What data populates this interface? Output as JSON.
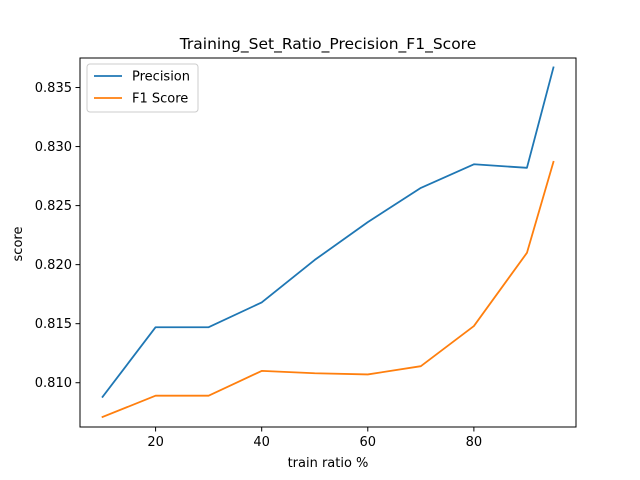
{
  "chart_data": {
    "type": "line",
    "title": "Training_Set_Ratio_Precision_F1_Score",
    "xlabel": "train ratio %",
    "ylabel": "score",
    "x": [
      10,
      20,
      30,
      40,
      50,
      60,
      70,
      80,
      90,
      95
    ],
    "xlim": [
      5.75,
      99.25
    ],
    "ylim": [
      0.80625,
      0.8375
    ],
    "xticks": [
      20,
      40,
      60,
      80
    ],
    "xtick_labels": [
      "20",
      "40",
      "60",
      "80"
    ],
    "yticks": [
      0.81,
      0.815,
      0.82,
      0.825,
      0.83,
      0.835
    ],
    "ytick_labels": [
      "0.810",
      "0.815",
      "0.820",
      "0.825",
      "0.830",
      "0.835"
    ],
    "grid": false,
    "legend_position": "top-left",
    "series": [
      {
        "name": "Precision",
        "color": "#1f77b4",
        "values": [
          0.8088,
          0.8147,
          0.8147,
          0.8168,
          0.8204,
          0.8236,
          0.8265,
          0.8285,
          0.8282,
          0.8367
        ]
      },
      {
        "name": "F1 Score",
        "color": "#ff7f0e",
        "values": [
          0.8071,
          0.8089,
          0.8089,
          0.811,
          0.8108,
          0.8107,
          0.8114,
          0.8148,
          0.821,
          0.8287
        ]
      }
    ]
  }
}
